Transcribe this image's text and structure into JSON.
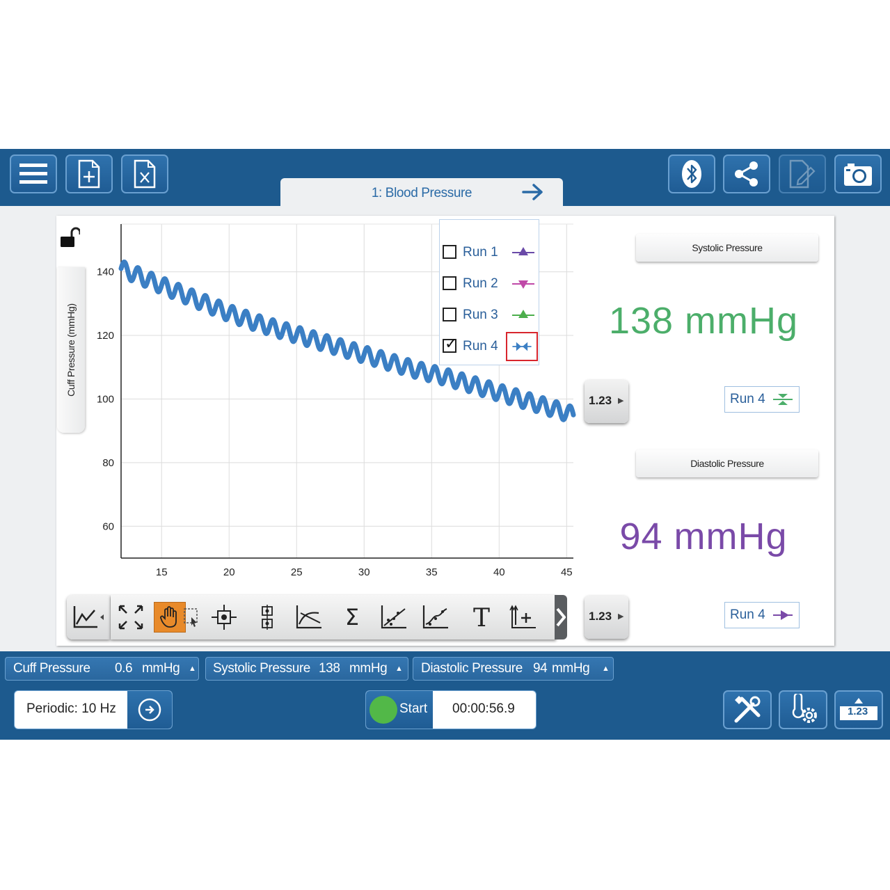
{
  "header": {
    "page_tab_label": "1: Blood Pressure",
    "left_buttons": [
      "menu-icon",
      "new-file-icon",
      "delete-file-icon"
    ],
    "right_buttons": [
      "bluetooth-icon",
      "share-icon",
      "annotate-icon",
      "camera-icon"
    ]
  },
  "graph": {
    "y_axis_label": "Cuff Pressure (mmHg)",
    "legend": [
      {
        "label": "Run 1",
        "checked": false,
        "color": "#6a4aa8",
        "marker": "triangle-up"
      },
      {
        "label": "Run 2",
        "checked": false,
        "color": "#c04aa8",
        "marker": "triangle-down"
      },
      {
        "label": "Run 3",
        "checked": false,
        "color": "#4cae4c",
        "marker": "triangle-up"
      },
      {
        "label": "Run 4",
        "checked": true,
        "color": "#3b7fc4",
        "marker": "bowtie",
        "highlighted": true
      }
    ]
  },
  "chart_data": {
    "type": "line",
    "title": "",
    "xlabel": "",
    "ylabel": "Cuff Pressure (mmHg)",
    "xlim": [
      12,
      45.5
    ],
    "ylim": [
      50,
      155
    ],
    "x_ticks": [
      15,
      20,
      25,
      30,
      35,
      40,
      45
    ],
    "y_ticks": [
      60,
      80,
      100,
      120,
      140
    ],
    "grid": true,
    "series": [
      {
        "name": "Run 4",
        "color": "#3b7fc4",
        "x": [
          12,
          14,
          16,
          18,
          20,
          22,
          24,
          26,
          28,
          30,
          32,
          34,
          36,
          38,
          40,
          42,
          44,
          45.5
        ],
        "y": [
          141,
          137.5,
          134,
          130.5,
          127,
          124,
          121.5,
          119,
          116.5,
          114,
          111.5,
          109,
          107,
          104.5,
          102,
          99.5,
          97,
          95
        ],
        "oscillation_amplitude": 2.5,
        "oscillation_period": 1.0
      }
    ]
  },
  "meters": [
    {
      "label": "Systolic Pressure",
      "value": "138 mmHg",
      "color": "#4cae6a",
      "run": "Run 4",
      "format_button": "1.23"
    },
    {
      "label": "Diastolic Pressure",
      "value": "94 mmHg",
      "color": "#7a4aa8",
      "run": "Run 4",
      "format_button": "1.23"
    }
  ],
  "graph_toolbar": [
    "graph-type-icon",
    "autoscale-icon",
    "pan-icon",
    "select-icon",
    "crosshair-icon",
    "tangent-icon",
    "slope-icon",
    "integral-icon",
    "linear-fit-icon",
    "curve-fit-icon",
    "text-annotation-icon",
    "add-axis-icon"
  ],
  "sensors": [
    {
      "name": "Cuff Pressure",
      "value": "0.6",
      "unit": "mmHg"
    },
    {
      "name": "Systolic Pressure",
      "value": "138",
      "unit": "mmHg"
    },
    {
      "name": "Diastolic Pressure",
      "value": "94",
      "unit": "mmHg"
    }
  ],
  "sampling": {
    "mode": "Periodic: 10 Hz"
  },
  "recording": {
    "start_label": "Start",
    "elapsed": "00:00:56.9"
  },
  "bottom_right_buttons": [
    "tools-icon",
    "sensor-settings-icon",
    "digits-display-icon"
  ],
  "digits_label": "1.23"
}
